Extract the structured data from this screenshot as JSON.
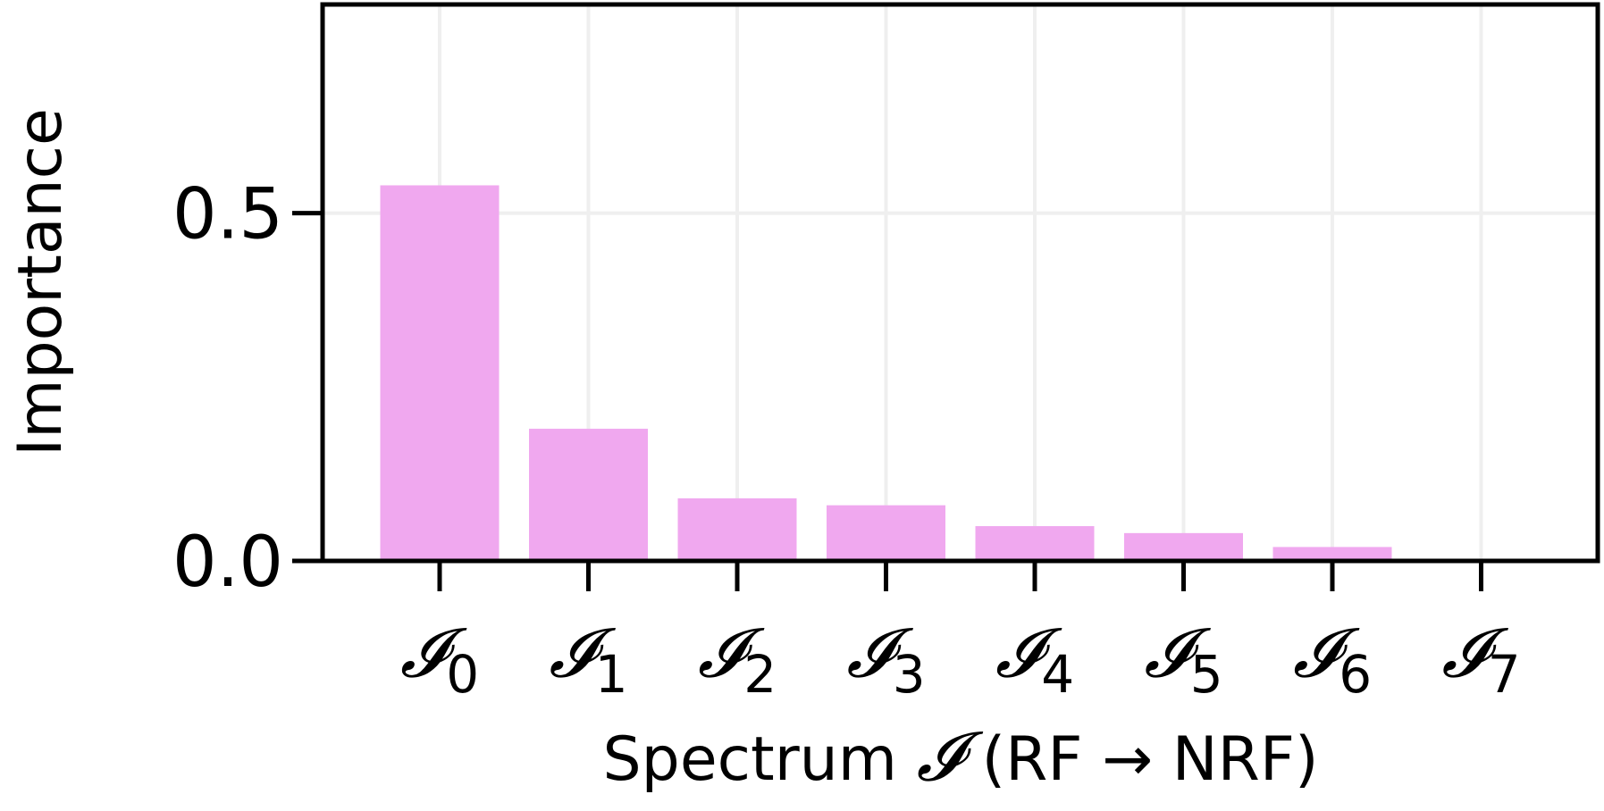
{
  "chart_data": {
    "type": "bar",
    "categories": [
      "𝓘0",
      "𝓘1",
      "𝓘2",
      "𝓘3",
      "𝓘4",
      "𝓘5",
      "𝓘6",
      "𝓘7"
    ],
    "category_symbol": "𝓘",
    "category_subscripts": [
      "0",
      "1",
      "2",
      "3",
      "4",
      "5",
      "6",
      "7"
    ],
    "values": [
      0.54,
      0.19,
      0.09,
      0.08,
      0.05,
      0.04,
      0.02,
      0.0
    ],
    "title": "",
    "xlabel": "Spectrum 𝓘 (RF → NRF)",
    "xlabel_parts": {
      "prefix": "Spectrum ",
      "symbol": "𝓘",
      "suffix": " (RF → NRF)"
    },
    "ylabel": "Importance",
    "ylim": [
      0.0,
      0.8
    ],
    "yticks": [
      0.0,
      0.5
    ],
    "ytick_labels": [
      "0.0",
      "0.5"
    ],
    "bar_color": "#f0a8ef",
    "grid": true,
    "grid_color": "#efefef",
    "axis_color": "#000000"
  }
}
